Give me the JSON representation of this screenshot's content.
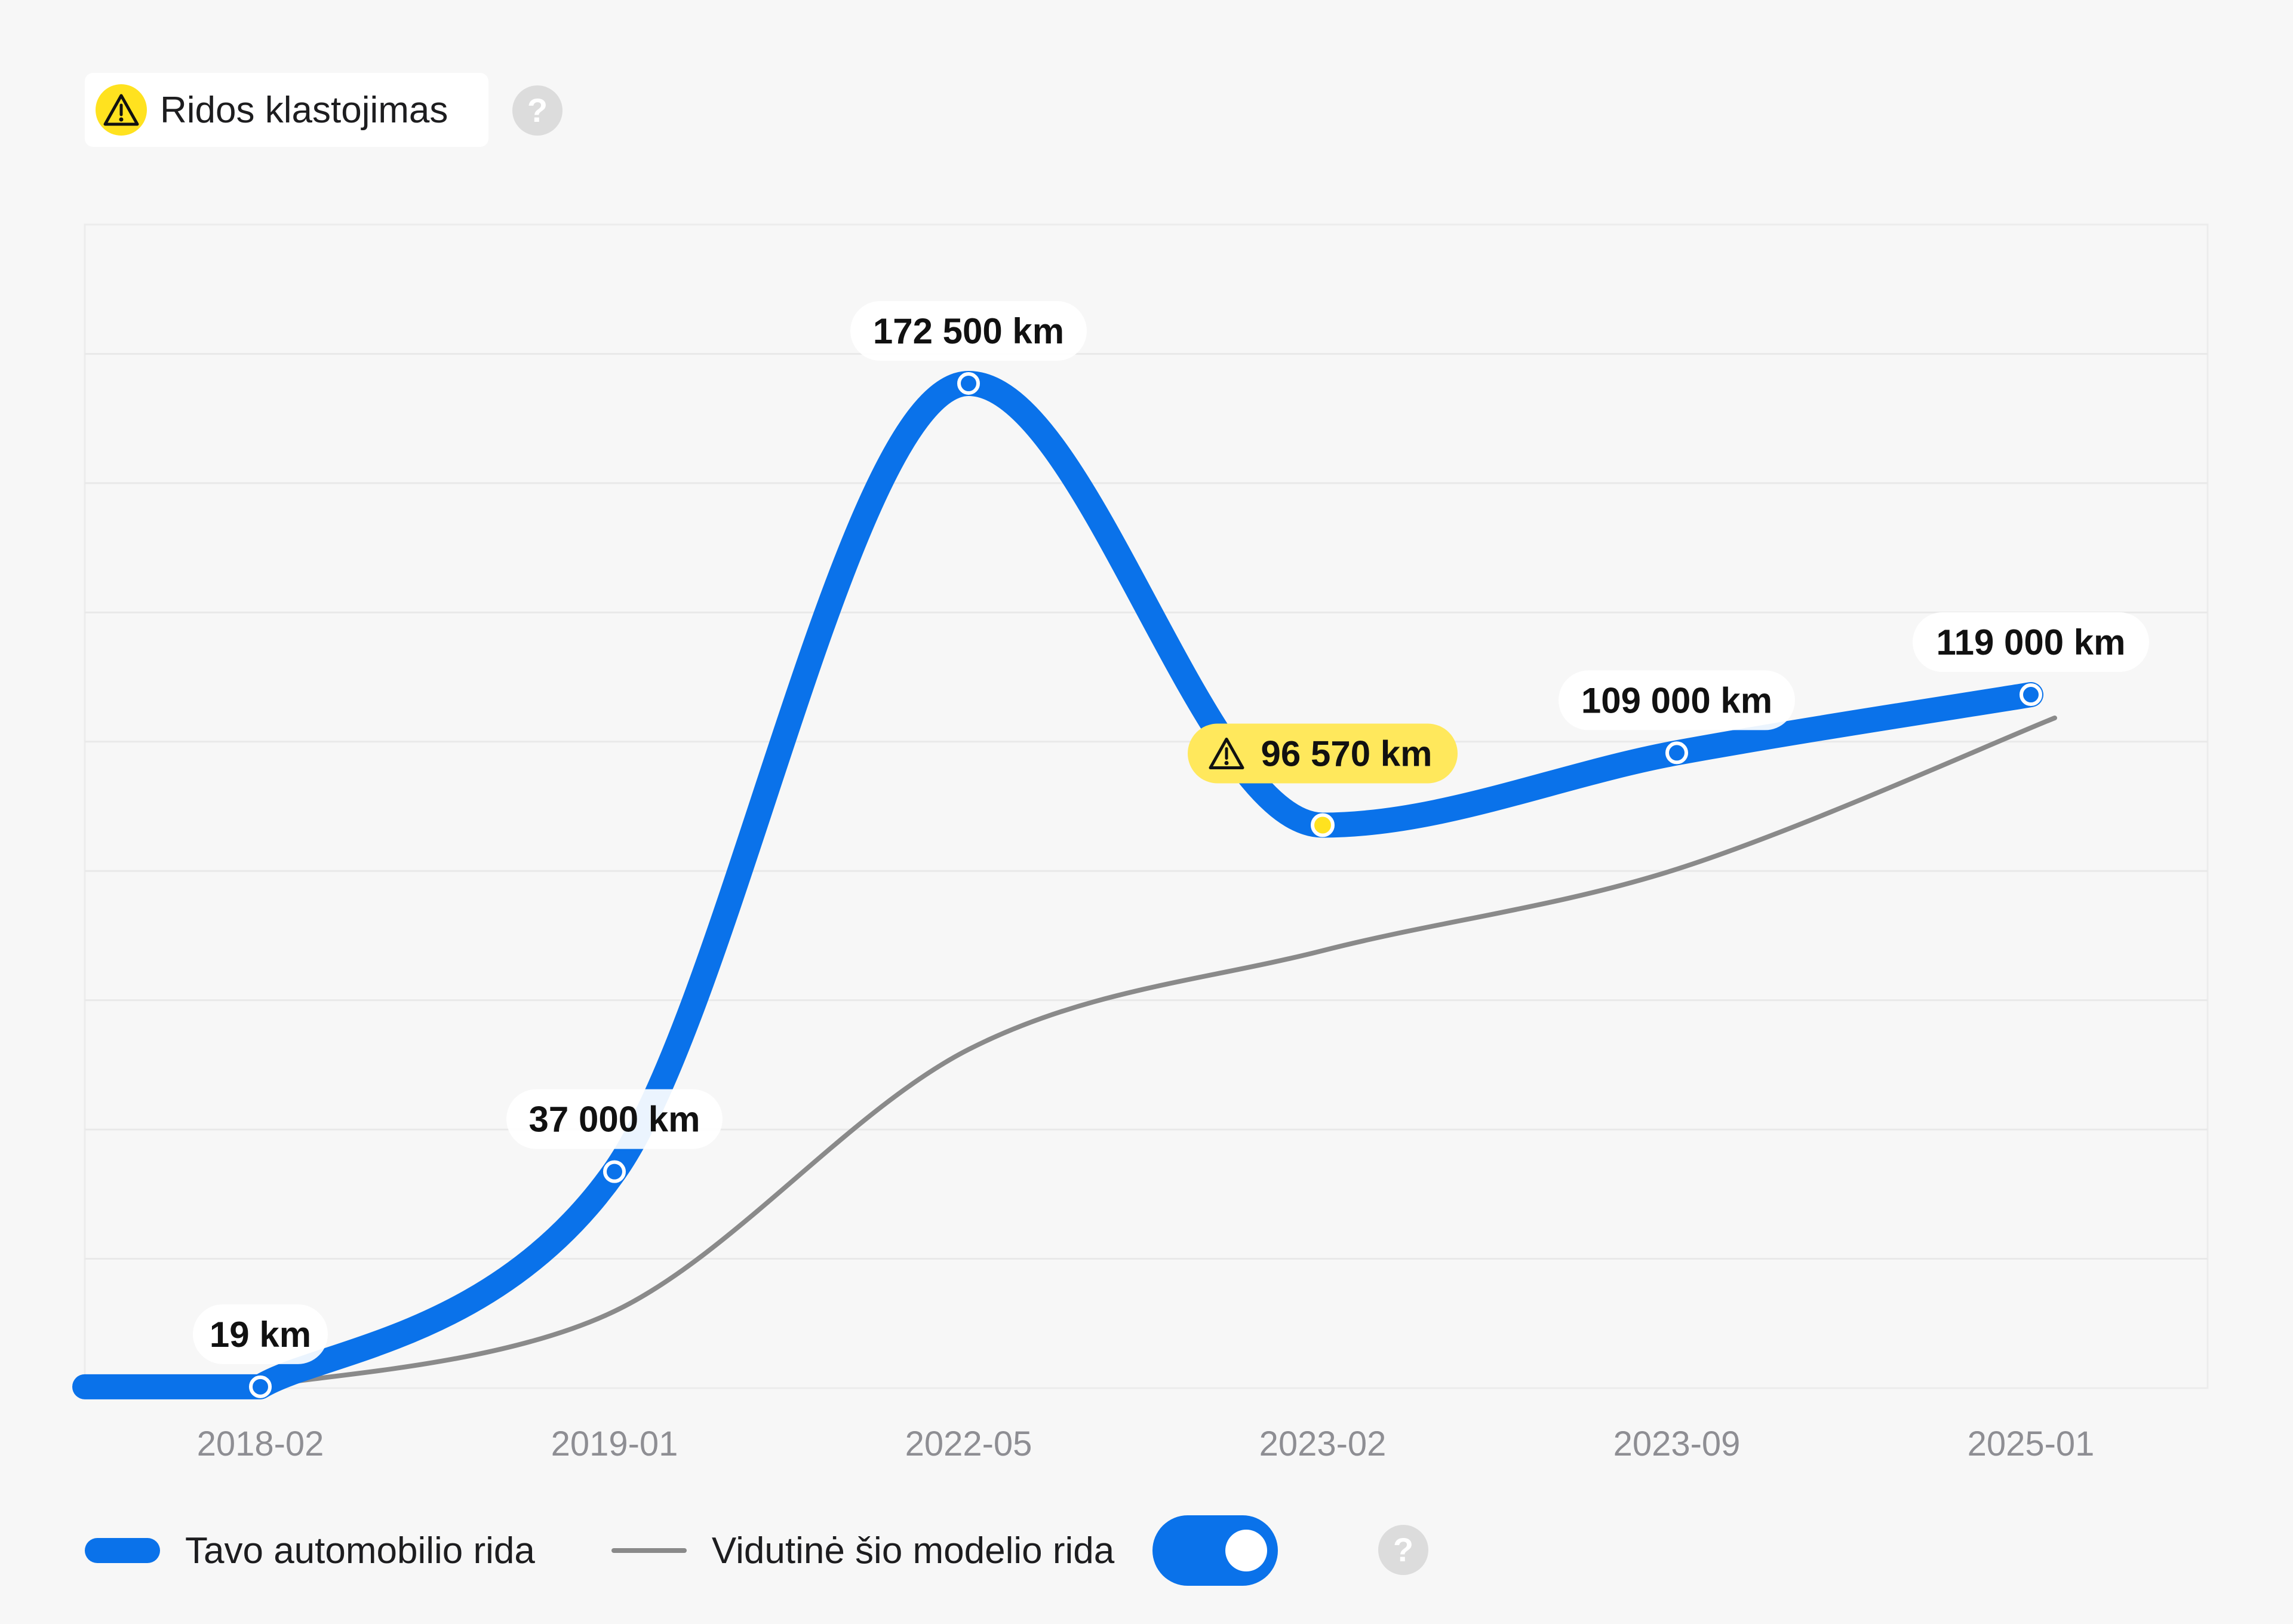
{
  "header": {
    "badge_label": "Ridos klastojimas",
    "badge_icon": "warning-triangle-icon",
    "help_icon": "question-mark-icon",
    "help_symbol": "?"
  },
  "chart_data": {
    "type": "line",
    "categories": [
      "2018-02",
      "2019-01",
      "2022-05",
      "2023-02",
      "2023-09",
      "2025-01"
    ],
    "series": [
      {
        "name": "Tavo automobilio rida",
        "values": [
          19,
          37000,
          172500,
          96570,
          109000,
          119000
        ],
        "data_labels": [
          "19 km",
          "37 000 km",
          "172 500 km",
          "96 570 km",
          "109 000 km",
          "119 000 km"
        ],
        "color": "#0a72ea",
        "flagged_index": 3,
        "flag_icon": "warning-triangle-icon",
        "flag_color": "#ffe85c"
      },
      {
        "name": "Vidutinė šio modelio rida",
        "values": [
          0,
          13000,
          58000,
          75000,
          89000,
          115000
        ],
        "color": "#8a8a8a"
      }
    ],
    "ylim": [
      0,
      200000
    ],
    "grid": true,
    "legend": "bottom"
  },
  "legend": {
    "items": [
      {
        "label": "Tavo automobilio rida"
      },
      {
        "label": "Vidutinė šio modelio rida"
      }
    ],
    "toggle_on": true
  }
}
